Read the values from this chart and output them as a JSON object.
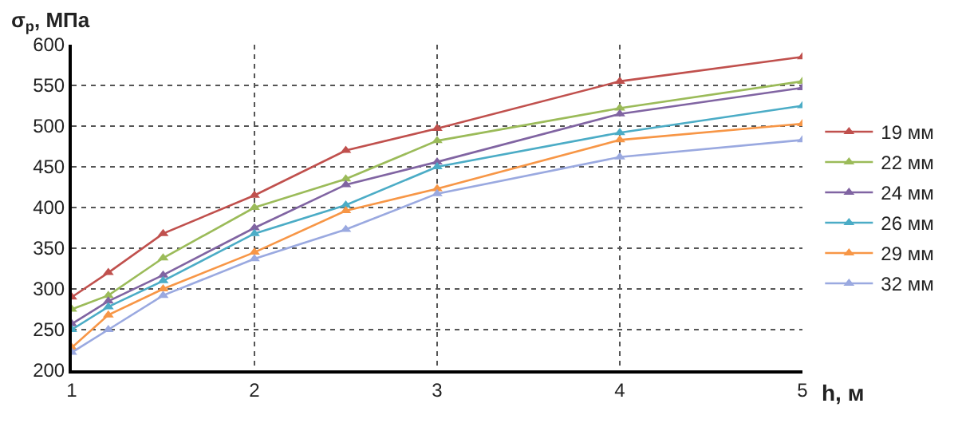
{
  "chart_data": {
    "type": "line",
    "xlabel": "h, м",
    "ylabel": "σ$_{р}$, МПа",
    "x": [
      1,
      1.2,
      1.5,
      2,
      2.5,
      3,
      4,
      5
    ],
    "series": [
      {
        "name": "19 мм",
        "color": "#c0504d",
        "values": [
          290,
          320,
          368,
          415,
          470,
          497,
          555,
          585
        ]
      },
      {
        "name": "22 мм",
        "color": "#9bbb59",
        "values": [
          275,
          292,
          338,
          400,
          435,
          482,
          522,
          555
        ]
      },
      {
        "name": "24 мм",
        "color": "#8064a2",
        "values": [
          257,
          285,
          317,
          375,
          428,
          456,
          515,
          547
        ]
      },
      {
        "name": "26 мм",
        "color": "#4bacc6",
        "values": [
          250,
          278,
          310,
          368,
          403,
          450,
          492,
          525
        ]
      },
      {
        "name": "29 мм",
        "color": "#f79646",
        "values": [
          228,
          268,
          300,
          345,
          396,
          423,
          483,
          503
        ]
      },
      {
        "name": "32 мм",
        "color": "#9aa9e0",
        "values": [
          222,
          250,
          292,
          337,
          373,
          417,
          462,
          483
        ]
      }
    ],
    "xlim": [
      1,
      5
    ],
    "xticks": [
      1,
      2,
      3,
      4,
      5
    ],
    "ylim": [
      200,
      600
    ],
    "yticks": [
      200,
      250,
      300,
      350,
      400,
      450,
      500,
      550,
      600
    ],
    "grid": true,
    "legend": "right",
    "marker": "triangle",
    "line_style": "solid"
  }
}
